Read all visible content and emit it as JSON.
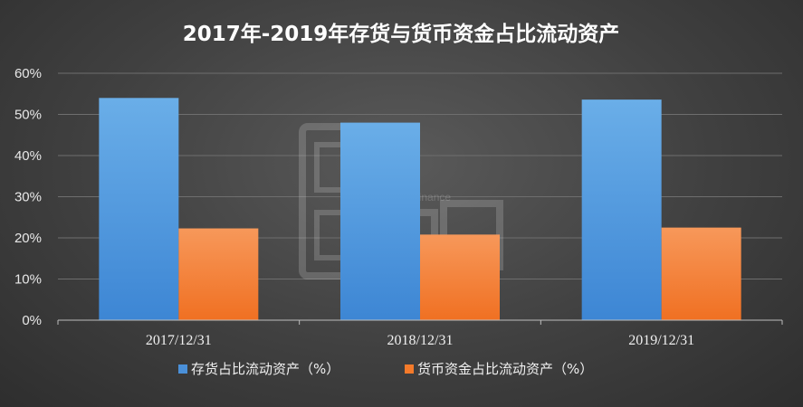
{
  "chart_data": {
    "type": "bar",
    "title": "2017年-2019年存货与货币资金占比流动资产",
    "categories": [
      "2017/12/31",
      "2018/12/31",
      "2019/12/31"
    ],
    "series": [
      {
        "name": "存货占比流动资产（%）",
        "values": [
          54.0,
          48.0,
          53.6
        ],
        "color": "#4a90d9"
      },
      {
        "name": "货币资金占比流动资产（%）",
        "values": [
          22.3,
          20.8,
          22.5
        ],
        "color": "#f47a2a"
      }
    ],
    "ylim": [
      0,
      60
    ],
    "yticks": [
      "0%",
      "10%",
      "20%",
      "30%",
      "40%",
      "50%",
      "60%"
    ],
    "grid": true,
    "legend_position": "bottom"
  },
  "watermark": {
    "text": "Bread Finance",
    "glyphs": "面包财经"
  }
}
